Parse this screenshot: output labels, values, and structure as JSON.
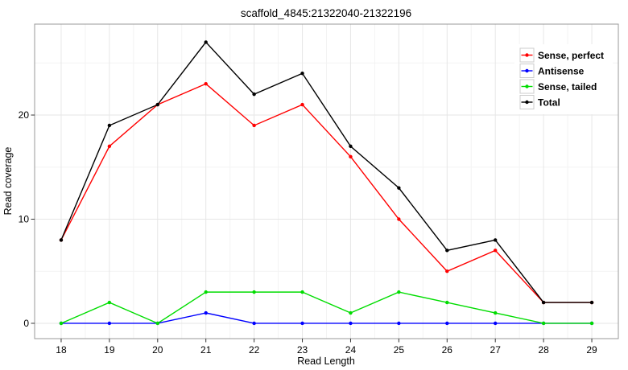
{
  "chart_data": {
    "type": "line",
    "title": "scaffold_4845:21322040-21322196",
    "xlabel": "Read Length",
    "ylabel": "Read coverage",
    "x": [
      18,
      19,
      20,
      21,
      22,
      23,
      24,
      25,
      26,
      27,
      28,
      29
    ],
    "series": [
      {
        "name": "Sense, perfect",
        "color": "#ff0000",
        "values": [
          8,
          17,
          21,
          23,
          19,
          21,
          16,
          10,
          5,
          7,
          2,
          2
        ]
      },
      {
        "name": "Antisense",
        "color": "#0000ff",
        "values": [
          0,
          0,
          0,
          1,
          0,
          0,
          0,
          0,
          0,
          0,
          0,
          0
        ]
      },
      {
        "name": "Sense, tailed",
        "color": "#00dd00",
        "values": [
          0,
          2,
          0,
          3,
          3,
          3,
          1,
          3,
          2,
          1,
          0,
          0
        ]
      },
      {
        "name": "Total",
        "color": "#000000",
        "values": [
          8,
          19,
          21,
          27,
          22,
          24,
          17,
          13,
          7,
          8,
          2,
          2
        ]
      }
    ],
    "x_ticks": [
      18,
      19,
      20,
      21,
      22,
      23,
      24,
      25,
      26,
      27,
      28,
      29
    ],
    "y_ticks": [
      0,
      10,
      20
    ],
    "y_minor": [
      5,
      15,
      25
    ],
    "xlim": [
      17.45,
      29.55
    ],
    "ylim": [
      -1.47,
      28.73
    ],
    "grid": true,
    "legend_position": "top-right",
    "theme": {
      "background": "#ffffff",
      "panel_background": "#ffffff",
      "grid_major": "#e6e6e6",
      "grid_minor": "#f3f3f3",
      "frame": "#999999",
      "tick": "#333333",
      "legend_key_border": "#cccccc",
      "legend_key_fill": "#ffffff"
    }
  }
}
